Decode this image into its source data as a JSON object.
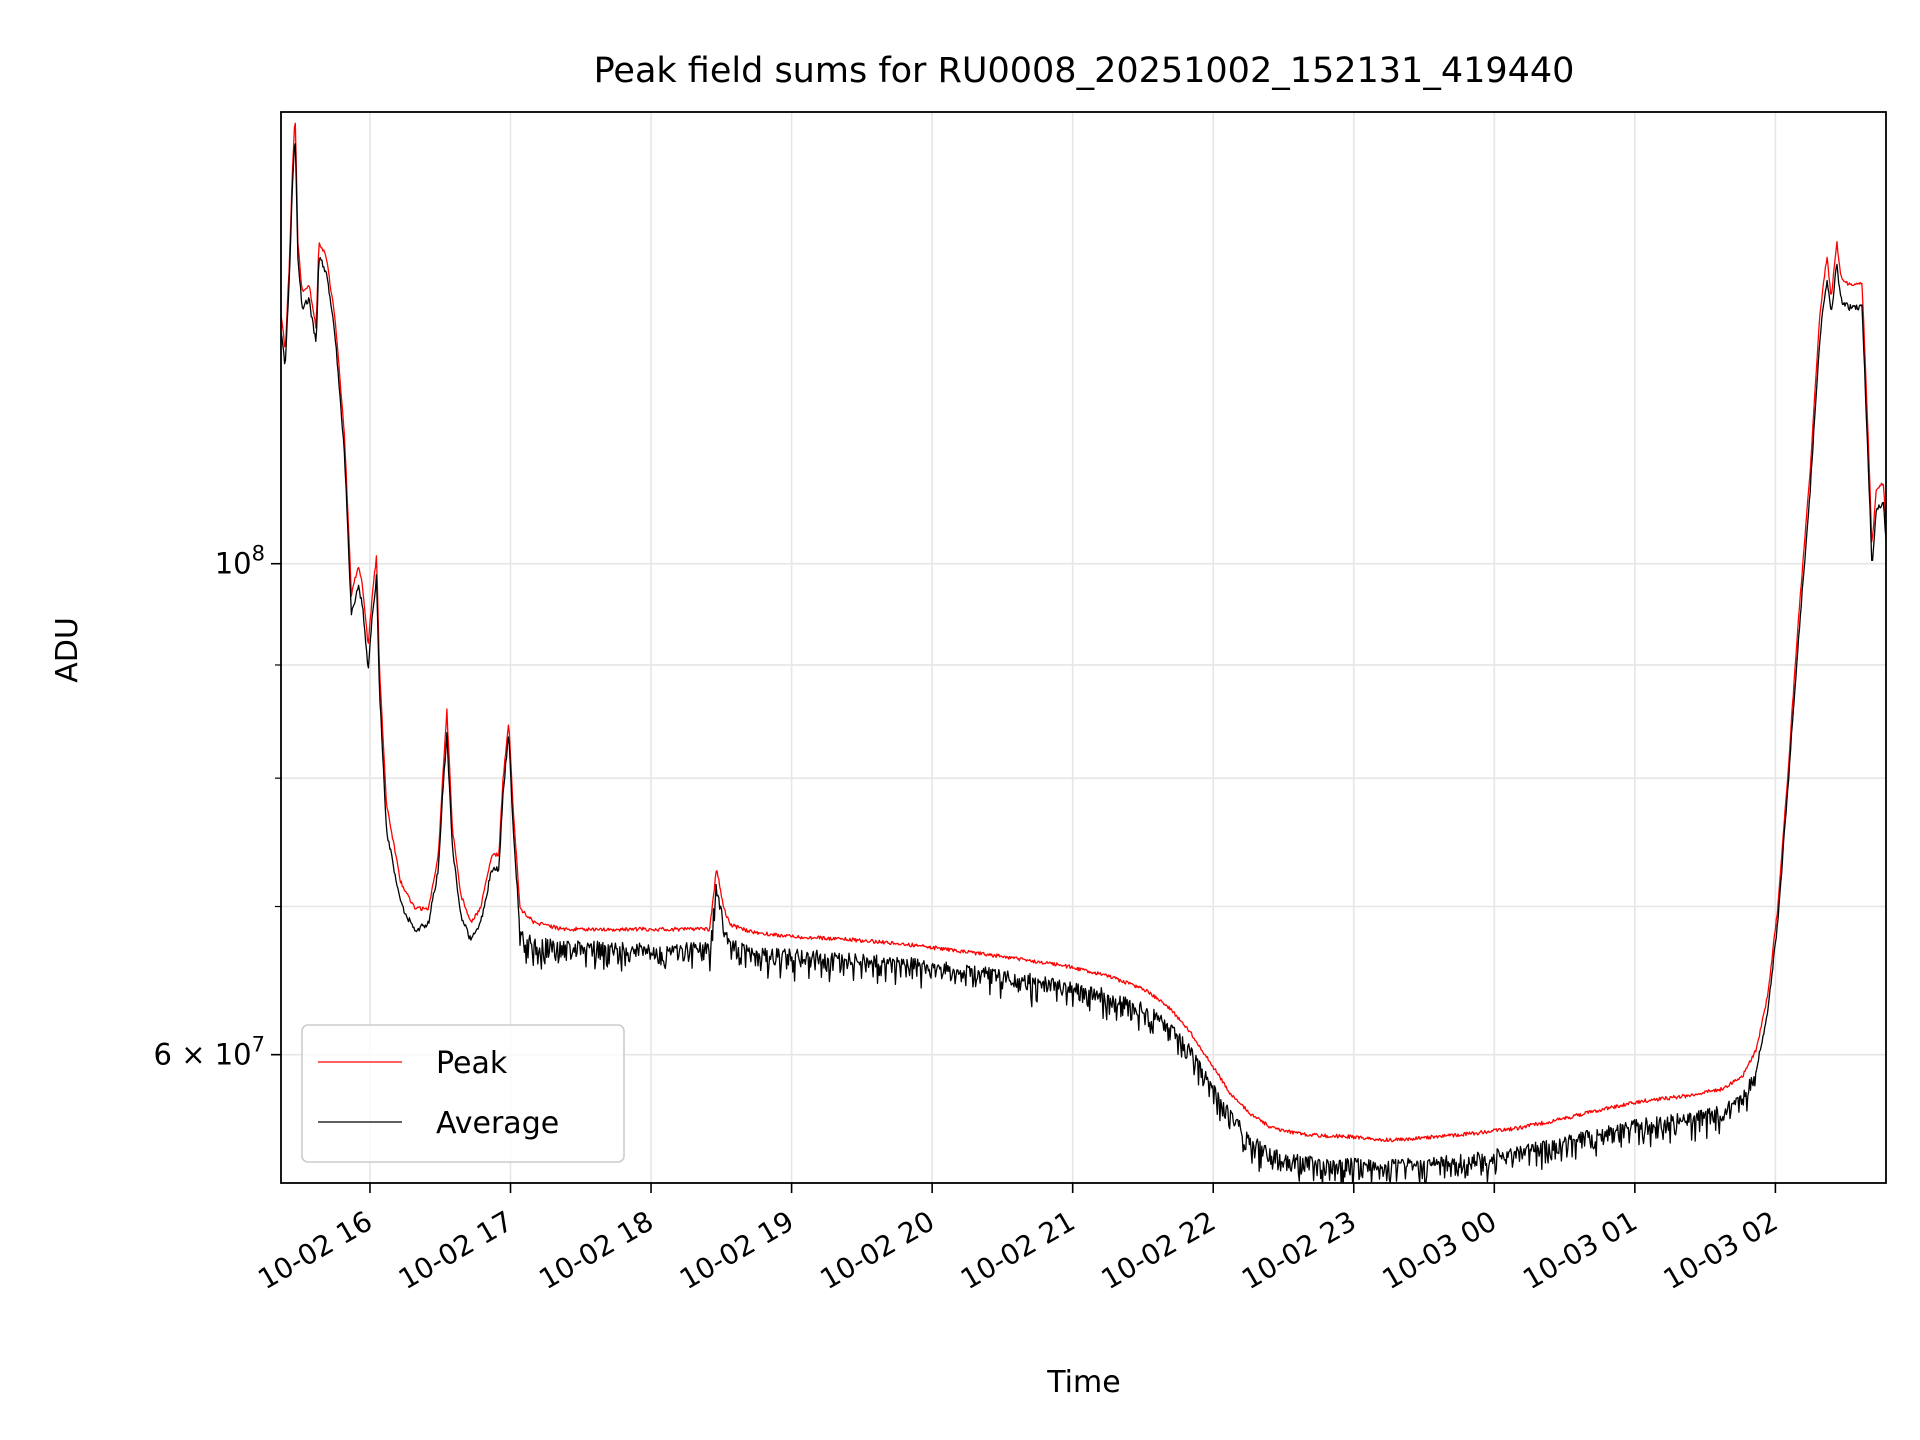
{
  "chart_data": {
    "type": "line",
    "title": "Peak field sums for RU0008_20251002_152131_419440",
    "xlabel": "Time",
    "ylabel": "ADU",
    "yscale": "log",
    "ylim": [
      52500000,
      160000000
    ],
    "xlim_hours": [
      0,
      11.42
    ],
    "x_unit": "hours since 2025-10-02 15:22",
    "grid": true,
    "legend_position": "lower-left",
    "x_ticks": [
      {
        "value": 0.633,
        "label": "10-02 16"
      },
      {
        "value": 1.633,
        "label": "10-02 17"
      },
      {
        "value": 2.633,
        "label": "10-02 18"
      },
      {
        "value": 3.633,
        "label": "10-02 19"
      },
      {
        "value": 4.633,
        "label": "10-02 20"
      },
      {
        "value": 5.633,
        "label": "10-02 21"
      },
      {
        "value": 6.633,
        "label": "10-02 22"
      },
      {
        "value": 7.633,
        "label": "10-02 23"
      },
      {
        "value": 8.633,
        "label": "10-03 00"
      },
      {
        "value": 9.633,
        "label": "10-03 01"
      },
      {
        "value": 10.633,
        "label": "10-03 02"
      }
    ],
    "y_major_ticks": [
      {
        "value": 100000000,
        "base": "10",
        "exp": "8",
        "coef": ""
      },
      {
        "value": 60000000,
        "base": "10",
        "exp": "7",
        "coef": "6 × "
      }
    ],
    "y_minor_grid": [
      60000000,
      70000000,
      80000000,
      90000000,
      100000000
    ],
    "series": [
      {
        "name": "Peak",
        "color": "#ff0000",
        "points": [
          [
            0.0,
            130000000
          ],
          [
            0.03,
            125000000
          ],
          [
            0.06,
            137000000
          ],
          [
            0.08,
            150000000
          ],
          [
            0.1,
            160000000
          ],
          [
            0.12,
            140000000
          ],
          [
            0.15,
            133000000
          ],
          [
            0.2,
            134000000
          ],
          [
            0.25,
            128000000
          ],
          [
            0.27,
            140000000
          ],
          [
            0.32,
            138000000
          ],
          [
            0.38,
            130000000
          ],
          [
            0.45,
            115000000
          ],
          [
            0.5,
            97000000
          ],
          [
            0.55,
            100000000
          ],
          [
            0.58,
            98000000
          ],
          [
            0.62,
            92000000
          ],
          [
            0.65,
            97000000
          ],
          [
            0.68,
            101000000
          ],
          [
            0.7,
            90000000
          ],
          [
            0.75,
            78000000
          ],
          [
            0.85,
            72000000
          ],
          [
            0.95,
            70000000
          ],
          [
            1.05,
            70000000
          ],
          [
            1.12,
            74000000
          ],
          [
            1.15,
            80000000
          ],
          [
            1.18,
            86000000
          ],
          [
            1.22,
            76000000
          ],
          [
            1.28,
            71000000
          ],
          [
            1.35,
            69000000
          ],
          [
            1.42,
            70000000
          ],
          [
            1.5,
            74000000
          ],
          [
            1.55,
            74000000
          ],
          [
            1.58,
            80000000
          ],
          [
            1.62,
            85000000
          ],
          [
            1.65,
            78000000
          ],
          [
            1.7,
            70000000
          ],
          [
            1.8,
            69000000
          ],
          [
            2.0,
            68500000
          ],
          [
            2.3,
            68500000
          ],
          [
            2.65,
            68500000
          ],
          [
            2.8,
            68500000
          ],
          [
            2.9,
            68500000
          ],
          [
            3.0,
            68500000
          ],
          [
            3.05,
            68500000
          ],
          [
            3.1,
            73000000
          ],
          [
            3.15,
            70000000
          ],
          [
            3.2,
            68800000
          ],
          [
            3.35,
            68300000
          ],
          [
            3.6,
            68000000
          ],
          [
            4.0,
            67800000
          ],
          [
            4.4,
            67500000
          ],
          [
            4.8,
            67000000
          ],
          [
            5.2,
            66500000
          ],
          [
            5.6,
            65900000
          ],
          [
            5.9,
            65200000
          ],
          [
            6.15,
            64300000
          ],
          [
            6.3,
            63300000
          ],
          [
            6.45,
            61800000
          ],
          [
            6.6,
            59800000
          ],
          [
            6.75,
            57800000
          ],
          [
            6.9,
            56500000
          ],
          [
            7.05,
            55700000
          ],
          [
            7.3,
            55300000
          ],
          [
            7.6,
            55200000
          ],
          [
            7.9,
            55000000
          ],
          [
            8.2,
            55200000
          ],
          [
            8.5,
            55400000
          ],
          [
            8.8,
            55700000
          ],
          [
            9.1,
            56200000
          ],
          [
            9.4,
            56800000
          ],
          [
            9.7,
            57300000
          ],
          [
            10.0,
            57600000
          ],
          [
            10.25,
            58000000
          ],
          [
            10.4,
            58800000
          ],
          [
            10.5,
            60500000
          ],
          [
            10.58,
            64000000
          ],
          [
            10.65,
            70000000
          ],
          [
            10.72,
            80000000
          ],
          [
            10.8,
            95000000
          ],
          [
            10.88,
            110000000
          ],
          [
            10.95,
            130000000
          ],
          [
            11.0,
            138000000
          ],
          [
            11.03,
            132000000
          ],
          [
            11.07,
            140000000
          ],
          [
            11.1,
            135000000
          ],
          [
            11.15,
            134000000
          ],
          [
            11.2,
            134000000
          ],
          [
            11.25,
            134000000
          ],
          [
            11.28,
            120000000
          ],
          [
            11.32,
            102000000
          ],
          [
            11.35,
            108000000
          ],
          [
            11.4,
            109000000
          ],
          [
            11.42,
            105000000
          ]
        ]
      },
      {
        "name": "Average",
        "color": "#000000",
        "points": [
          [
            0.0,
            128000000
          ],
          [
            0.03,
            123000000
          ],
          [
            0.06,
            135000000
          ],
          [
            0.08,
            148000000
          ],
          [
            0.1,
            157000000
          ],
          [
            0.12,
            138000000
          ],
          [
            0.15,
            131000000
          ],
          [
            0.2,
            132000000
          ],
          [
            0.25,
            126000000
          ],
          [
            0.27,
            138000000
          ],
          [
            0.32,
            136000000
          ],
          [
            0.38,
            128000000
          ],
          [
            0.45,
            113000000
          ],
          [
            0.5,
            95000000
          ],
          [
            0.55,
            98000000
          ],
          [
            0.58,
            96000000
          ],
          [
            0.62,
            90000000
          ],
          [
            0.65,
            95000000
          ],
          [
            0.68,
            99000000
          ],
          [
            0.7,
            88000000
          ],
          [
            0.75,
            76000000
          ],
          [
            0.85,
            70500000
          ],
          [
            0.95,
            68500000
          ],
          [
            1.05,
            69000000
          ],
          [
            1.12,
            73000000
          ],
          [
            1.15,
            79000000
          ],
          [
            1.18,
            84000000
          ],
          [
            1.22,
            74500000
          ],
          [
            1.28,
            69500000
          ],
          [
            1.35,
            67800000
          ],
          [
            1.42,
            69000000
          ],
          [
            1.5,
            73000000
          ],
          [
            1.55,
            73000000
          ],
          [
            1.58,
            79000000
          ],
          [
            1.62,
            84000000
          ],
          [
            1.65,
            76500000
          ],
          [
            1.7,
            68500000
          ],
          [
            1.8,
            67800000
          ],
          [
            2.0,
            67600000
          ],
          [
            2.3,
            67500000
          ],
          [
            2.65,
            67400000
          ],
          [
            2.8,
            67500000
          ],
          [
            2.9,
            67400000
          ],
          [
            3.0,
            67500000
          ],
          [
            3.05,
            67400000
          ],
          [
            3.1,
            72000000
          ],
          [
            3.15,
            69000000
          ],
          [
            3.2,
            67700000
          ],
          [
            3.35,
            67200000
          ],
          [
            3.6,
            67000000
          ],
          [
            4.0,
            66800000
          ],
          [
            4.4,
            66500000
          ],
          [
            4.8,
            66000000
          ],
          [
            5.2,
            65500000
          ],
          [
            5.6,
            64900000
          ],
          [
            5.9,
            64200000
          ],
          [
            6.15,
            63300000
          ],
          [
            6.3,
            62300000
          ],
          [
            6.45,
            60800000
          ],
          [
            6.6,
            58800000
          ],
          [
            6.75,
            56700000
          ],
          [
            6.9,
            55300000
          ],
          [
            7.05,
            54400000
          ],
          [
            7.3,
            54000000
          ],
          [
            7.6,
            53900000
          ],
          [
            7.9,
            53800000
          ],
          [
            8.2,
            54000000
          ],
          [
            8.5,
            54200000
          ],
          [
            8.8,
            54600000
          ],
          [
            9.1,
            55100000
          ],
          [
            9.4,
            55700000
          ],
          [
            9.7,
            56200000
          ],
          [
            10.0,
            56500000
          ],
          [
            10.25,
            56900000
          ],
          [
            10.4,
            57700000
          ],
          [
            10.5,
            59400000
          ],
          [
            10.58,
            63000000
          ],
          [
            10.65,
            69000000
          ],
          [
            10.72,
            79000000
          ],
          [
            10.8,
            93000000
          ],
          [
            10.88,
            108000000
          ],
          [
            10.95,
            127000000
          ],
          [
            11.0,
            135000000
          ],
          [
            11.03,
            130000000
          ],
          [
            11.07,
            137000000
          ],
          [
            11.1,
            132000000
          ],
          [
            11.15,
            131000000
          ],
          [
            11.2,
            131000000
          ],
          [
            11.25,
            131000000
          ],
          [
            11.28,
            117000000
          ],
          [
            11.32,
            100000000
          ],
          [
            11.35,
            106000000
          ],
          [
            11.4,
            107000000
          ],
          [
            11.42,
            103000000
          ]
        ]
      }
    ]
  }
}
